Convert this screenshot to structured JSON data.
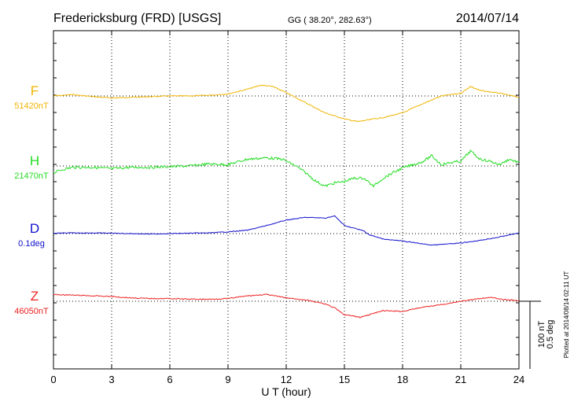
{
  "header": {
    "station": "Fredericksburg (FRD)  [USGS]",
    "coords": "GG ( 38.20°, 282.63°)",
    "date": "2014/07/14"
  },
  "side_note": "Plotted at 2014/08/14 02:11 UT",
  "scale_bar": {
    "line1": "100 nT",
    "line2": "0.5 deg"
  },
  "chart_data": {
    "type": "line",
    "xlabel": "U T (hour)",
    "xlim": [
      0,
      24
    ],
    "xticks": [
      0,
      3,
      6,
      9,
      12,
      15,
      18,
      21,
      24
    ],
    "xtick_labels": [
      "0",
      "3",
      "6",
      "9",
      "12",
      "15",
      "18",
      "21",
      "24"
    ],
    "grid": "dotted vertical at every 3 h; dotted horizontal baseline per component",
    "units": {
      "nT_per_scale_bar": 100,
      "deg_per_scale_bar": 0.5
    },
    "series": [
      {
        "name": "F",
        "baseline_label": "51420nT",
        "unit": "nT",
        "baseline": 51420,
        "color": "#f0b400",
        "points": [
          [
            0,
            0
          ],
          [
            1,
            2
          ],
          [
            2,
            -1
          ],
          [
            3,
            -3
          ],
          [
            4,
            -2
          ],
          [
            5,
            -1
          ],
          [
            6,
            0
          ],
          [
            7,
            0
          ],
          [
            8,
            1
          ],
          [
            9,
            3
          ],
          [
            10,
            10
          ],
          [
            10.7,
            16
          ],
          [
            11.3,
            14
          ],
          [
            12,
            5
          ],
          [
            13,
            -10
          ],
          [
            14,
            -25
          ],
          [
            15,
            -34
          ],
          [
            15.7,
            -38
          ],
          [
            16.5,
            -34
          ],
          [
            17,
            -32
          ],
          [
            18,
            -25
          ],
          [
            19,
            -12
          ],
          [
            20,
            0
          ],
          [
            21,
            4
          ],
          [
            21.5,
            14
          ],
          [
            22,
            8
          ],
          [
            23,
            4
          ],
          [
            24,
            -2
          ]
        ]
      },
      {
        "name": "H",
        "baseline_label": "21470nT",
        "unit": "nT",
        "baseline": 21470,
        "color": "#22dd22",
        "points": [
          [
            0,
            -10
          ],
          [
            0.5,
            -5
          ],
          [
            1,
            -2
          ],
          [
            2,
            -2
          ],
          [
            3,
            -4
          ],
          [
            4,
            -2
          ],
          [
            5,
            -2
          ],
          [
            6,
            -1
          ],
          [
            7,
            0
          ],
          [
            8,
            3
          ],
          [
            9,
            2
          ],
          [
            10,
            10
          ],
          [
            11,
            12
          ],
          [
            11.8,
            10
          ],
          [
            12.5,
            0
          ],
          [
            13,
            -10
          ],
          [
            13.5,
            -22
          ],
          [
            14,
            -30
          ],
          [
            14.5,
            -25
          ],
          [
            15,
            -23
          ],
          [
            15.5,
            -18
          ],
          [
            16,
            -18
          ],
          [
            16.5,
            -30
          ],
          [
            17,
            -18
          ],
          [
            17.5,
            -10
          ],
          [
            18,
            -3
          ],
          [
            19,
            6
          ],
          [
            19.5,
            15
          ],
          [
            20,
            2
          ],
          [
            20.5,
            5
          ],
          [
            21,
            7
          ],
          [
            21.5,
            22
          ],
          [
            22,
            10
          ],
          [
            22.5,
            7
          ],
          [
            23,
            2
          ],
          [
            23.5,
            10
          ],
          [
            24,
            5
          ]
        ]
      },
      {
        "name": "D",
        "baseline_label": "0.1deg",
        "unit": "deg",
        "baseline": 0.1,
        "color": "#1010cc",
        "points": [
          [
            0,
            0.003
          ],
          [
            1,
            0.005
          ],
          [
            2,
            0.005
          ],
          [
            3,
            0.003
          ],
          [
            4,
            0
          ],
          [
            5,
            -0.003
          ],
          [
            6,
            0
          ],
          [
            7,
            0.003
          ],
          [
            8,
            0.005
          ],
          [
            9,
            0.013
          ],
          [
            10,
            0.025
          ],
          [
            11,
            0.06
          ],
          [
            12,
            0.1
          ],
          [
            12.5,
            0.11
          ],
          [
            13,
            0.12
          ],
          [
            14,
            0.115
          ],
          [
            14.5,
            0.13
          ],
          [
            15,
            0.06
          ],
          [
            16,
            0.02
          ],
          [
            16.3,
            -0.01
          ],
          [
            17,
            -0.04
          ],
          [
            18,
            -0.055
          ],
          [
            19,
            -0.075
          ],
          [
            19.5,
            -0.085
          ],
          [
            20,
            -0.08
          ],
          [
            21,
            -0.07
          ],
          [
            22,
            -0.05
          ],
          [
            23,
            -0.025
          ],
          [
            24,
            0.005
          ]
        ]
      },
      {
        "name": "Z",
        "baseline_label": "46050nT",
        "unit": "nT",
        "baseline": 46050,
        "color": "#ee2222",
        "points": [
          [
            0,
            10
          ],
          [
            1,
            9
          ],
          [
            2,
            8
          ],
          [
            3,
            7
          ],
          [
            4,
            5
          ],
          [
            5,
            4
          ],
          [
            6,
            4
          ],
          [
            7,
            3
          ],
          [
            8,
            3
          ],
          [
            9,
            4
          ],
          [
            10,
            8
          ],
          [
            11,
            10
          ],
          [
            12,
            5
          ],
          [
            13,
            2
          ],
          [
            14,
            -4
          ],
          [
            14.5,
            -10
          ],
          [
            15,
            -20
          ],
          [
            15.5,
            -22
          ],
          [
            15.8,
            -24
          ],
          [
            16.5,
            -18
          ],
          [
            17,
            -14
          ],
          [
            18,
            -15
          ],
          [
            19,
            -9
          ],
          [
            20,
            -5
          ],
          [
            21,
            0
          ],
          [
            22,
            4
          ],
          [
            22.5,
            6
          ],
          [
            23,
            3
          ],
          [
            24,
            1
          ]
        ]
      }
    ]
  }
}
